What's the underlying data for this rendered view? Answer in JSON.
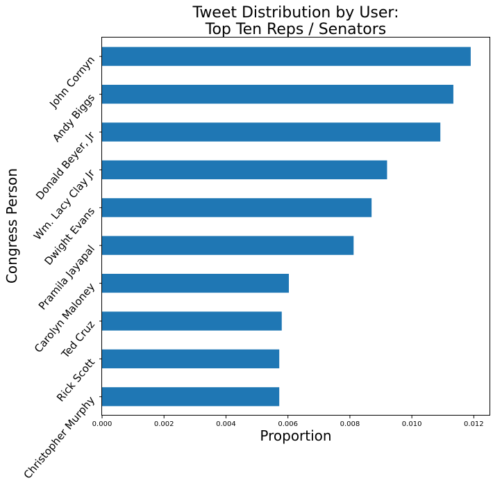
{
  "chart_data": {
    "type": "bar",
    "orientation": "horizontal",
    "title_lines": [
      "Tweet Distribution by User:",
      "Top Ten Reps / Senators"
    ],
    "xlabel": "Proportion",
    "ylabel": "Congress Person",
    "categories": [
      "John Cornyn",
      "Andy Biggs",
      "Donald Beyer, Jr",
      "Wm. Lacy Clay Jr",
      "Dwight Evans",
      "Pramila Jayapal",
      "Carolyn Maloney",
      "Ted Cruz",
      "Rick Scott",
      "Christopher Murphy"
    ],
    "values": [
      0.0119,
      0.01134,
      0.01092,
      0.0092,
      0.0087,
      0.00812,
      0.00603,
      0.0058,
      0.00572,
      0.00572
    ],
    "xlim": [
      0,
      0.01253
    ],
    "xticks": [
      0,
      0.002,
      0.004,
      0.006,
      0.008,
      0.01,
      0.012
    ],
    "xtick_labels": [
      "0.000",
      "0.002",
      "0.004",
      "0.006",
      "0.008",
      "0.010",
      "0.012"
    ],
    "bar_color": "#1f77b4",
    "grid": false,
    "legend": "none"
  }
}
